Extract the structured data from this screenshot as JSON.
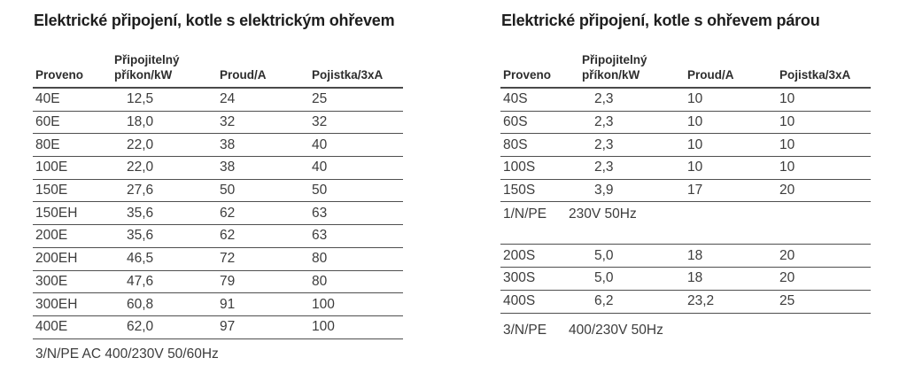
{
  "colors": {
    "background": "#ffffff",
    "title_text": "#1e1e1e",
    "body_text": "#3c3c3c",
    "rule": "#4a4a4a"
  },
  "left_table": {
    "title": "Elektrické připojení, kotle s elektrickým ohřevem",
    "headers": {
      "col1": "Proveno",
      "col2_line1": "Připojitelný",
      "col2_line2": "příkon/kW",
      "col3": "Proud/A",
      "col4": "Pojistka/3xA"
    },
    "rows": [
      [
        "40E",
        "12,5",
        "24",
        "25"
      ],
      [
        "60E",
        "18,0",
        "32",
        "32"
      ],
      [
        "80E",
        "22,0",
        "38",
        "40"
      ],
      [
        "100E",
        "22,0",
        "38",
        "40"
      ],
      [
        "150E",
        "27,6",
        "50",
        "50"
      ],
      [
        "150EH",
        "35,6",
        "62",
        "63"
      ],
      [
        "200E",
        "35,6",
        "62",
        "63"
      ],
      [
        "200EH",
        "46,5",
        "72",
        "80"
      ],
      [
        "300E",
        "47,6",
        "79",
        "80"
      ],
      [
        "300EH",
        "60,8",
        "91",
        "100"
      ],
      [
        "400E",
        "62,0",
        "97",
        "100"
      ]
    ],
    "footer": "3/N/PE AC 400/230V 50/60Hz"
  },
  "right_table": {
    "title": "Elektrické připojení, kotle s ohřevem párou",
    "headers": {
      "col1": "Proveno",
      "col2_line1": "Připojitelný",
      "col2_line2": "příkon/kW",
      "col3": "Proud/A",
      "col4": "Pojistka/3xA"
    },
    "sections": [
      {
        "rows": [
          [
            "40S",
            "2,3",
            "10",
            "10"
          ],
          [
            "60S",
            "2,3",
            "10",
            "10"
          ],
          [
            "80S",
            "2,3",
            "10",
            "10"
          ],
          [
            "100S",
            "2,3",
            "10",
            "10"
          ],
          [
            "150S",
            "3,9",
            "17",
            "20"
          ]
        ],
        "footer_label": "1/N/PE",
        "footer_value": "230V 50Hz"
      },
      {
        "rows": [
          [
            "200S",
            "5,0",
            "18",
            "20"
          ],
          [
            "300S",
            "5,0",
            "18",
            "20"
          ],
          [
            "400S",
            "6,2",
            "23,2",
            "25"
          ]
        ],
        "footer_label": "3/N/PE",
        "footer_value": "400/230V 50Hz"
      }
    ]
  }
}
